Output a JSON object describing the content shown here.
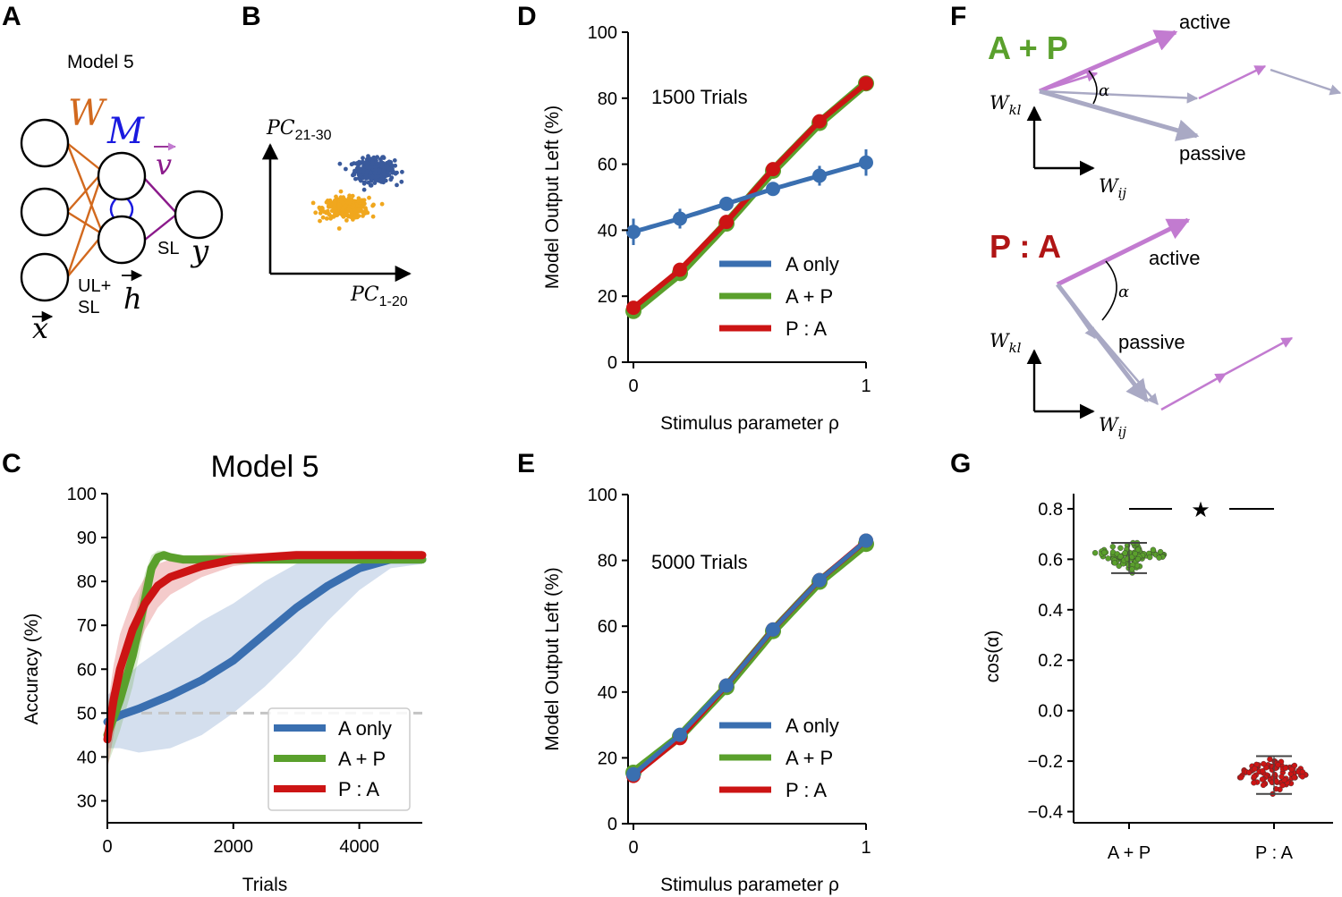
{
  "panels": {
    "a": {
      "label": "A",
      "title": "Model 5",
      "W": "W",
      "M": "M",
      "v": "v",
      "SL": "SL",
      "y": "y",
      "UL": "UL+",
      "SL2": "SL",
      "h": "h",
      "x": "x"
    },
    "b": {
      "label": "B",
      "pc_y": "PC",
      "pc_y_sub": "21-30",
      "pc_x": "PC",
      "pc_x_sub": "1-20"
    },
    "c": {
      "label": "C",
      "title": "Model 5"
    },
    "d": {
      "label": "D",
      "annotation": "1500 Trials"
    },
    "e": {
      "label": "E",
      "annotation": "5000 Trials"
    },
    "f": {
      "label": "F",
      "top": {
        "title": "A + P",
        "active": "active",
        "passive": "passive",
        "alpha": "α",
        "wkl": "W",
        "wkl_sub": "kl",
        "wij": "W",
        "wij_sub": "ij"
      },
      "bottom": {
        "title": "P : A",
        "active": "active",
        "passive": "passive",
        "alpha": "α",
        "wkl": "W",
        "wkl_sub": "kl",
        "wij": "W",
        "wij_sub": "ij"
      }
    },
    "g": {
      "label": "G",
      "star": "★"
    }
  },
  "colors": {
    "a_only": "#3a6fb0",
    "a_p": "#5aa02c",
    "p_a": "#cc1414",
    "w_orange": "#d2691e",
    "m_blue": "#1a1adf",
    "v_purple": "#8b1a8b",
    "active_arrow": "#c27bd0",
    "passive_arrow": "#a9a9c4"
  },
  "chart_data": [
    {
      "id": "C",
      "type": "line",
      "title": "Model 5",
      "xlabel": "Trials",
      "ylabel": "Accuracy (%)",
      "xlim": [
        0,
        5000
      ],
      "ylim": [
        25,
        100
      ],
      "xticks": [
        "0",
        "2000",
        "4000"
      ],
      "yticks": [
        "30",
        "40",
        "50",
        "60",
        "70",
        "80",
        "90",
        "100"
      ],
      "reference_line": 50,
      "legend": [
        "A only",
        "A + P",
        "P : A"
      ],
      "legend_position": "lower right",
      "series": [
        {
          "name": "A only",
          "color": "#3a6fb0",
          "x": [
            0,
            200,
            500,
            1000,
            1500,
            2000,
            2500,
            3000,
            3500,
            4000,
            4500,
            5000
          ],
          "y": [
            48,
            49.5,
            51,
            54,
            57.5,
            62,
            68,
            74,
            79,
            83,
            85,
            85
          ],
          "band": [
            [
              42,
              54
            ],
            [
              42,
              57
            ],
            [
              41,
              61
            ],
            [
              42,
              66
            ],
            [
              45,
              71
            ],
            [
              50,
              75
            ],
            [
              56,
              80
            ],
            [
              63,
              84
            ],
            [
              71,
              86
            ],
            [
              78,
              87
            ],
            [
              83,
              87
            ],
            [
              84,
              86
            ]
          ]
        },
        {
          "name": "A + P",
          "color": "#5aa02c",
          "x": [
            0,
            200,
            400,
            600,
            700,
            800,
            900,
            1000,
            1200,
            1500,
            2000,
            3000,
            4000,
            5000
          ],
          "y": [
            45,
            53,
            63,
            76,
            83,
            85.5,
            86,
            85.5,
            85,
            85,
            85,
            85,
            85,
            85
          ],
          "band": [
            [
              38,
              52
            ],
            [
              46,
              60
            ],
            [
              56,
              70
            ],
            [
              70,
              82
            ],
            [
              80,
              86
            ],
            [
              84,
              87
            ],
            [
              85,
              87
            ],
            [
              84.5,
              86.5
            ],
            [
              84,
              86
            ],
            [
              84,
              86
            ],
            [
              84,
              86
            ],
            [
              84,
              86
            ],
            [
              84,
              86
            ],
            [
              84,
              86
            ]
          ]
        },
        {
          "name": "P : A",
          "color": "#cc1414",
          "x": [
            0,
            100,
            200,
            400,
            600,
            800,
            1000,
            1500,
            2000,
            2500,
            3000,
            4000,
            5000
          ],
          "y": [
            44,
            53,
            60,
            69,
            75,
            79,
            81,
            83.5,
            85,
            85.5,
            86,
            86,
            86
          ],
          "band": [
            [
              37,
              51
            ],
            [
              45,
              61
            ],
            [
              52,
              68
            ],
            [
              62,
              76
            ],
            [
              69,
              81
            ],
            [
              74,
              84
            ],
            [
              77,
              85
            ],
            [
              81,
              86
            ],
            [
              83.5,
              86.5
            ],
            [
              84.5,
              86.5
            ],
            [
              85,
              87
            ],
            [
              85,
              87
            ],
            [
              85,
              87
            ]
          ]
        }
      ]
    },
    {
      "id": "D",
      "type": "line",
      "xlabel": "Stimulus parameter ρ",
      "ylabel": "Model Output Left (%)",
      "xlim": [
        0,
        1
      ],
      "ylim": [
        0,
        100
      ],
      "xticks": [
        "0",
        "1"
      ],
      "yticks": [
        "0",
        "20",
        "40",
        "60",
        "80",
        "100"
      ],
      "legend": [
        "A only",
        "A + P",
        "P : A"
      ],
      "legend_position": "lower right",
      "series": [
        {
          "name": "A only",
          "color": "#3a6fb0",
          "x": [
            0,
            0.2,
            0.4,
            0.6,
            0.8,
            1.0
          ],
          "y": [
            39.5,
            43.5,
            48,
            52.5,
            56.5,
            60.5
          ],
          "err": [
            4,
            3,
            2,
            2,
            3,
            4
          ]
        },
        {
          "name": "A + P",
          "color": "#5aa02c",
          "x": [
            0,
            0.2,
            0.4,
            0.6,
            0.8,
            1.0
          ],
          "y": [
            15.5,
            27,
            42,
            58,
            72.5,
            84.5
          ]
        },
        {
          "name": "P : A",
          "color": "#cc1414",
          "x": [
            0,
            0.2,
            0.4,
            0.6,
            0.8,
            1.0
          ],
          "y": [
            16.5,
            28,
            42.5,
            58.5,
            73,
            84.5
          ]
        }
      ]
    },
    {
      "id": "E",
      "type": "line",
      "xlabel": "Stimulus parameter ρ",
      "ylabel": "Model Output Left (%)",
      "xlim": [
        0,
        1
      ],
      "ylim": [
        0,
        100
      ],
      "xticks": [
        "0",
        "1"
      ],
      "yticks": [
        "0",
        "20",
        "40",
        "60",
        "80",
        "100"
      ],
      "legend": [
        "A only",
        "A + P",
        "P : A"
      ],
      "legend_position": "lower right",
      "series": [
        {
          "name": "A only",
          "color": "#3a6fb0",
          "x": [
            0,
            0.2,
            0.4,
            0.6,
            0.8,
            1.0
          ],
          "y": [
            15,
            27,
            42,
            59,
            74,
            86
          ]
        },
        {
          "name": "A + P",
          "color": "#5aa02c",
          "x": [
            0,
            0.2,
            0.4,
            0.6,
            0.8,
            1.0
          ],
          "y": [
            15.5,
            26.5,
            41.5,
            58.5,
            73.5,
            85
          ]
        },
        {
          "name": "P : A",
          "color": "#cc1414",
          "x": [
            0,
            0.2,
            0.4,
            0.6,
            0.8,
            1.0
          ],
          "y": [
            14.5,
            26,
            42,
            59,
            74,
            86
          ]
        }
      ]
    },
    {
      "id": "G",
      "type": "scatter",
      "ylabel": "cos(α)",
      "ylim": [
        -0.43,
        0.86
      ],
      "yticks": [
        "−0.4",
        "−0.2",
        "0.0",
        "0.2",
        "0.4",
        "0.6",
        "0.8"
      ],
      "ytick_values": [
        -0.4,
        -0.2,
        0.0,
        0.2,
        0.4,
        0.6,
        0.8
      ],
      "categories": [
        "A + P",
        "P : A"
      ],
      "significance": "★",
      "series": [
        {
          "name": "A + P",
          "color": "#5aa02c",
          "median": 0.615,
          "min": 0.545,
          "max": 0.665,
          "n": 100
        },
        {
          "name": "P : A",
          "color": "#cc1414",
          "median": -0.255,
          "min": -0.33,
          "max": -0.18,
          "n": 100
        }
      ]
    },
    {
      "id": "B",
      "type": "scatter",
      "series": [
        {
          "name": "cluster 1",
          "color": "#3a5a9c",
          "center": [
            0.62,
            0.74
          ],
          "spread": [
            0.13,
            0.09
          ],
          "n": 320
        },
        {
          "name": "cluster 2",
          "color": "#f0a71e",
          "center": [
            0.45,
            0.47
          ],
          "spread": [
            0.15,
            0.08
          ],
          "n": 320
        }
      ]
    }
  ]
}
